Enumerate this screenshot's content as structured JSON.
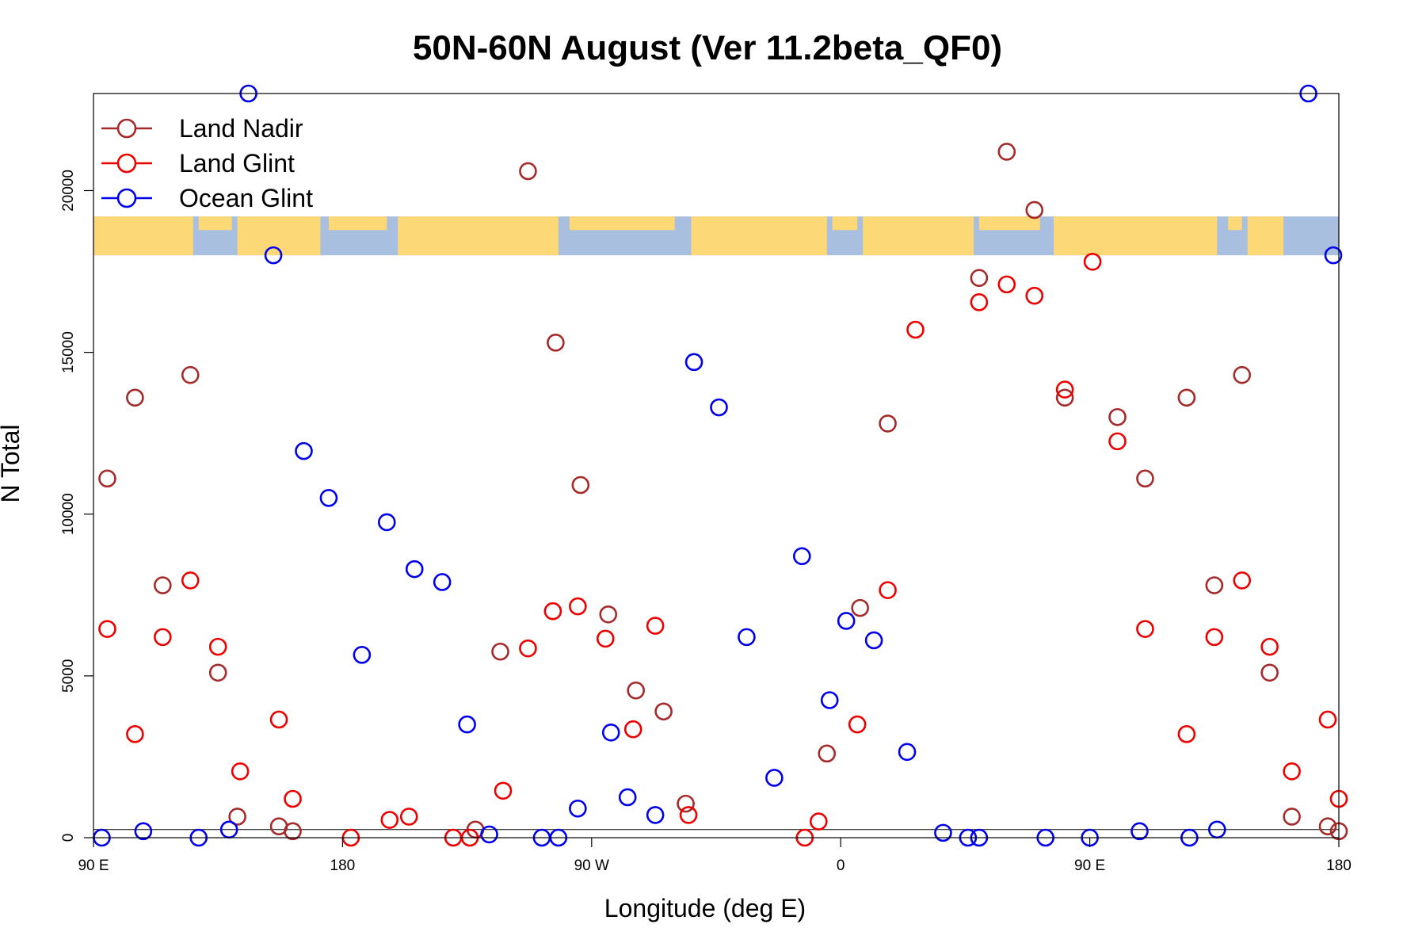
{
  "chart_data": {
    "type": "scatter",
    "title": "50N-60N August (Ver 11.2beta_QF0)",
    "xlabel": "Longitude (deg E)",
    "ylabel": "N Total",
    "xlim": [
      90,
      540
    ],
    "ylim": [
      0,
      23000
    ],
    "x_ticks": [
      {
        "value": 90,
        "label": "90 E"
      },
      {
        "value": 180,
        "label": "180"
      },
      {
        "value": 270,
        "label": "90 W"
      },
      {
        "value": 360,
        "label": "0"
      },
      {
        "value": 450,
        "label": "90 E"
      },
      {
        "value": 540,
        "label": "180"
      }
    ],
    "y_ticks": [
      {
        "value": 0,
        "label": "0"
      },
      {
        "value": 5000,
        "label": "5000"
      },
      {
        "value": 10000,
        "label": "10000"
      },
      {
        "value": 15000,
        "label": "15000"
      },
      {
        "value": 20000,
        "label": "20000"
      }
    ],
    "hline": 250,
    "map_strip": {
      "y_from": 18000,
      "y_to": 19200,
      "ocean_color": "#a8bfdf",
      "land_color": "#fdd877"
    },
    "legend": {
      "position": "top-left"
    },
    "series": [
      {
        "name": "Land Nadir",
        "color": "#a52a2a",
        "points": [
          [
            95,
            11100
          ],
          [
            105,
            13600
          ],
          [
            115,
            7800
          ],
          [
            125,
            14300
          ],
          [
            135,
            5100
          ],
          [
            142,
            650
          ],
          [
            157,
            350
          ],
          [
            162,
            200
          ],
          [
            228,
            250
          ],
          [
            237,
            5750
          ],
          [
            247,
            20600
          ],
          [
            257,
            15300
          ],
          [
            266,
            10900
          ],
          [
            276,
            6900
          ],
          [
            286,
            4550
          ],
          [
            296,
            3900
          ],
          [
            304,
            1050
          ],
          [
            355,
            2600
          ],
          [
            367,
            7100
          ],
          [
            377,
            12800
          ],
          [
            410,
            17300
          ],
          [
            420,
            21200
          ],
          [
            430,
            19400
          ],
          [
            441,
            13600
          ],
          [
            460,
            13000
          ],
          [
            470,
            11100
          ],
          [
            485,
            13600
          ],
          [
            495,
            7800
          ],
          [
            505,
            14300
          ],
          [
            515,
            5100
          ],
          [
            523,
            650
          ],
          [
            536,
            350
          ],
          [
            540,
            200
          ]
        ]
      },
      {
        "name": "Land Glint",
        "color": "#ee0000",
        "points": [
          [
            95,
            6450
          ],
          [
            105,
            3200
          ],
          [
            115,
            6200
          ],
          [
            125,
            7950
          ],
          [
            135,
            5900
          ],
          [
            143,
            2050
          ],
          [
            157,
            3650
          ],
          [
            162,
            1200
          ],
          [
            183,
            0
          ],
          [
            197,
            550
          ],
          [
            204,
            650
          ],
          [
            220,
            0
          ],
          [
            226,
            0
          ],
          [
            238,
            1450
          ],
          [
            247,
            5850
          ],
          [
            256,
            7000
          ],
          [
            265,
            7150
          ],
          [
            275,
            6150
          ],
          [
            285,
            3350
          ],
          [
            293,
            6550
          ],
          [
            305,
            700
          ],
          [
            347,
            0
          ],
          [
            352,
            500
          ],
          [
            366,
            3500
          ],
          [
            377,
            7650
          ],
          [
            387,
            15700
          ],
          [
            410,
            16550
          ],
          [
            420,
            17100
          ],
          [
            430,
            16750
          ],
          [
            441,
            13850
          ],
          [
            451,
            17800
          ],
          [
            460,
            12250
          ],
          [
            470,
            6450
          ],
          [
            485,
            3200
          ],
          [
            495,
            6200
          ],
          [
            505,
            7950
          ],
          [
            515,
            5900
          ],
          [
            523,
            2050
          ],
          [
            536,
            3650
          ],
          [
            540,
            1200
          ]
        ]
      },
      {
        "name": "Ocean Glint",
        "color": "#0000ee",
        "points": [
          [
            93,
            0
          ],
          [
            108,
            200
          ],
          [
            128,
            0
          ],
          [
            139,
            250
          ],
          [
            146,
            23000
          ],
          [
            155,
            18000
          ],
          [
            166,
            11950
          ],
          [
            175,
            10500
          ],
          [
            187,
            5650
          ],
          [
            196,
            9750
          ],
          [
            206,
            8300
          ],
          [
            216,
            7900
          ],
          [
            225,
            3500
          ],
          [
            233,
            100
          ],
          [
            252,
            0
          ],
          [
            258,
            0
          ],
          [
            265,
            900
          ],
          [
            277,
            3250
          ],
          [
            283,
            1250
          ],
          [
            293,
            700
          ],
          [
            307,
            14700
          ],
          [
            316,
            13300
          ],
          [
            326,
            6200
          ],
          [
            336,
            1850
          ],
          [
            346,
            8700
          ],
          [
            356,
            4250
          ],
          [
            362,
            6700
          ],
          [
            372,
            6100
          ],
          [
            384,
            2650
          ],
          [
            397,
            150
          ],
          [
            406,
            0
          ],
          [
            410,
            0
          ],
          [
            434,
            0
          ],
          [
            450,
            0
          ],
          [
            468,
            200
          ],
          [
            486,
            0
          ],
          [
            496,
            250
          ],
          [
            529,
            23000
          ],
          [
            538,
            18000
          ]
        ]
      }
    ]
  }
}
